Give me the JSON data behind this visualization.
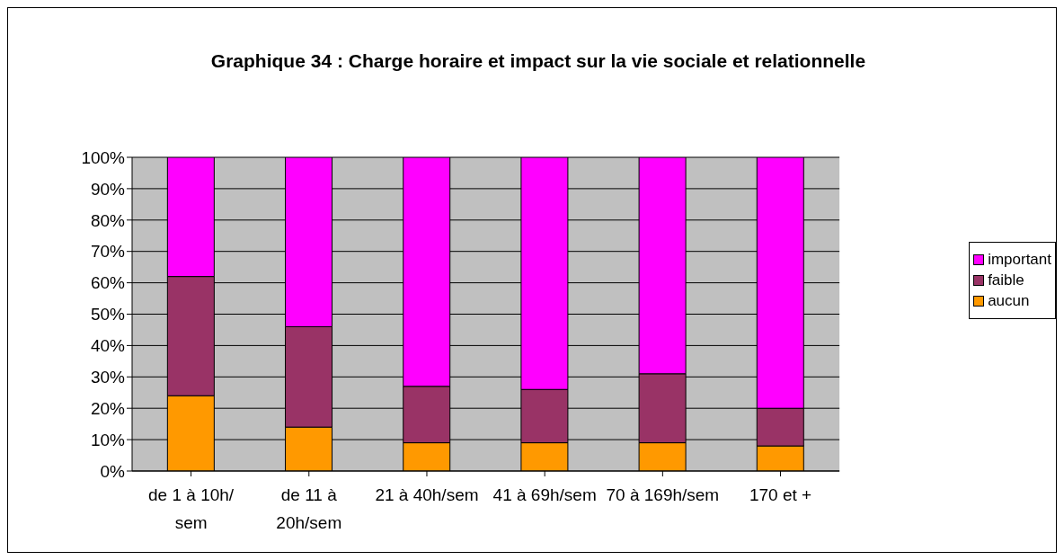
{
  "chart_data": {
    "type": "bar",
    "title": "Graphique 34 : Charge horaire et impact sur la vie sociale et relationnelle",
    "stacked": true,
    "categories": [
      "de 1 à 10h/ sem",
      "de 11 à 20h/sem",
      "21 à 40h/sem",
      "41 à 69h/sem",
      "70 à 169h/sem",
      "170 et +"
    ],
    "series": [
      {
        "name": "aucun",
        "color": "#ff9900",
        "values": [
          24,
          14,
          9,
          9,
          9,
          8
        ]
      },
      {
        "name": "faible",
        "color": "#993366",
        "values": [
          38,
          32,
          18,
          17,
          22,
          12
        ]
      },
      {
        "name": "important",
        "color": "#ff00ff",
        "values": [
          38,
          54,
          73,
          74,
          69,
          80
        ]
      }
    ],
    "ylim": [
      0,
      100
    ],
    "yticks": [
      {
        "value": 0,
        "label": "0%"
      },
      {
        "value": 10,
        "label": "10%"
      },
      {
        "value": 20,
        "label": "20%"
      },
      {
        "value": 30,
        "label": "30%"
      },
      {
        "value": 40,
        "label": "40%"
      },
      {
        "value": 50,
        "label": "50%"
      },
      {
        "value": 60,
        "label": "60%"
      },
      {
        "value": 70,
        "label": "70%"
      },
      {
        "value": 80,
        "label": "80%"
      },
      {
        "value": 90,
        "label": "90%"
      },
      {
        "value": 100,
        "label": "100%"
      }
    ],
    "grid": "y",
    "legend": "right"
  }
}
